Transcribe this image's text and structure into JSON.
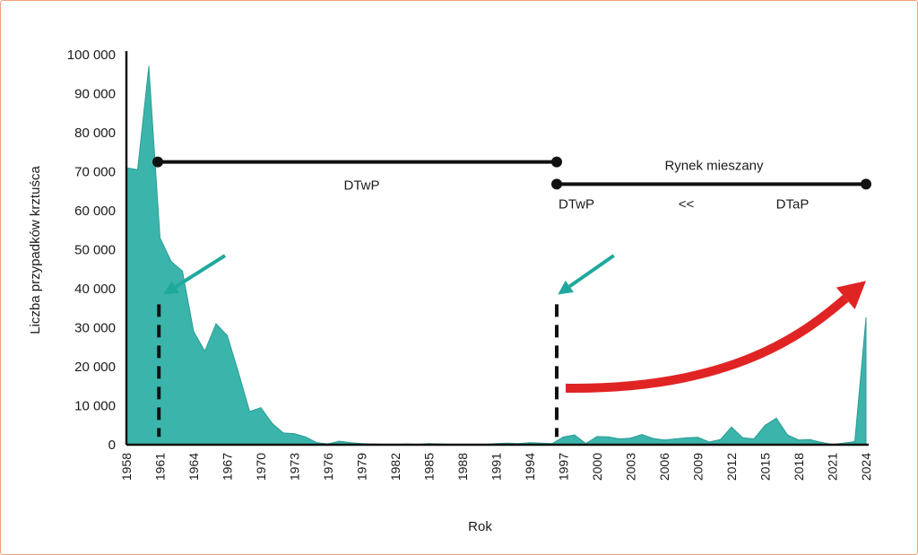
{
  "chart_data": {
    "type": "area",
    "title": "",
    "xlabel": "Rok",
    "ylabel": "Liczba przypadków krztuśca",
    "ylim": [
      0,
      100000
    ],
    "xlim": [
      1958,
      2024
    ],
    "grid": false,
    "yticks": [
      0,
      10000,
      20000,
      30000,
      40000,
      50000,
      60000,
      70000,
      80000,
      90000,
      100000
    ],
    "ytick_labels": [
      "0",
      "10 000",
      "20 000",
      "30 000",
      "40 000",
      "50 000",
      "60 000",
      "70 000",
      "80 000",
      "90 000",
      "100 000"
    ],
    "xticks": [
      1958,
      1961,
      1964,
      1967,
      1970,
      1973,
      1976,
      1979,
      1982,
      1985,
      1988,
      1991,
      1994,
      1997,
      2000,
      2003,
      2006,
      2009,
      2012,
      2015,
      2018,
      2021,
      2024
    ],
    "xtick_labels": [
      "1958",
      "1961",
      "1964",
      "1967",
      "1970",
      "1973",
      "1976",
      "1979",
      "1982",
      "1985",
      "1988",
      "1991",
      "1994",
      "1997",
      "2000",
      "2003",
      "2006",
      "2009",
      "2012",
      "2015",
      "2018",
      "2021",
      "2024"
    ],
    "series_color": "#3bb5ab",
    "series": [
      {
        "x": [
          1958,
          1959,
          1960,
          1961,
          1962,
          1963,
          1964,
          1965,
          1966,
          1967,
          1968,
          1969,
          1970,
          1971,
          1972,
          1973,
          1974,
          1975,
          1976,
          1977,
          1978,
          1979,
          1980,
          1981,
          1982,
          1983,
          1984,
          1985,
          1986,
          1987,
          1988,
          1989,
          1990,
          1991,
          1992,
          1993,
          1994,
          1995,
          1996,
          1997,
          1998,
          1999,
          2000,
          2001,
          2002,
          2003,
          2004,
          2005,
          2006,
          2007,
          2008,
          2009,
          2010,
          2011,
          2012,
          2013,
          2014,
          2015,
          2016,
          2017,
          2018,
          2019,
          2020,
          2021,
          2022,
          2023,
          2024
        ],
        "values": [
          71000,
          70500,
          97000,
          53000,
          47000,
          44500,
          29000,
          24000,
          31000,
          28000,
          18500,
          8500,
          9500,
          5500,
          3000,
          2800,
          2000,
          500,
          200,
          900,
          500,
          300,
          200,
          100,
          100,
          200,
          100,
          300,
          200,
          100,
          100,
          100,
          100,
          300,
          400,
          300,
          500,
          400,
          300,
          2000,
          2500,
          300,
          2100,
          2000,
          1500,
          1700,
          2600,
          1600,
          1200,
          1500,
          1800,
          1900,
          700,
          1300,
          4500,
          1800,
          1500,
          5000,
          6800,
          2500,
          1200,
          1300,
          600,
          100,
          400,
          800,
          32500
        ]
      }
    ],
    "annotations": {
      "bar1": {
        "label": "DTwP",
        "x_start": 1960.8,
        "x_end": 1996.4,
        "y": 72500
      },
      "bar2": {
        "title": "Rynek mieszany",
        "left_label": "DTwP",
        "middle_label": "<<",
        "right_label": "DTaP",
        "x_start": 1996.4,
        "x_end": 2024.0,
        "y": 66800
      },
      "dashed_lines": [
        {
          "x": 1960.9,
          "y_from": 2000,
          "y_to": 36000
        },
        {
          "x": 1996.4,
          "y_from": 2000,
          "y_to": 36000
        }
      ],
      "arrows": [
        {
          "color": "#1fa99e",
          "from": [
            1966.8,
            48500
          ],
          "to": [
            1961.3,
            38500
          ]
        },
        {
          "color": "#1fa99e",
          "from": [
            2001.5,
            48500
          ],
          "to": [
            1996.5,
            38500
          ]
        },
        {
          "color": "#e02424",
          "from": [
            1997.2,
            14500
          ],
          "to": [
            2024.0,
            42000
          ]
        }
      ]
    }
  }
}
